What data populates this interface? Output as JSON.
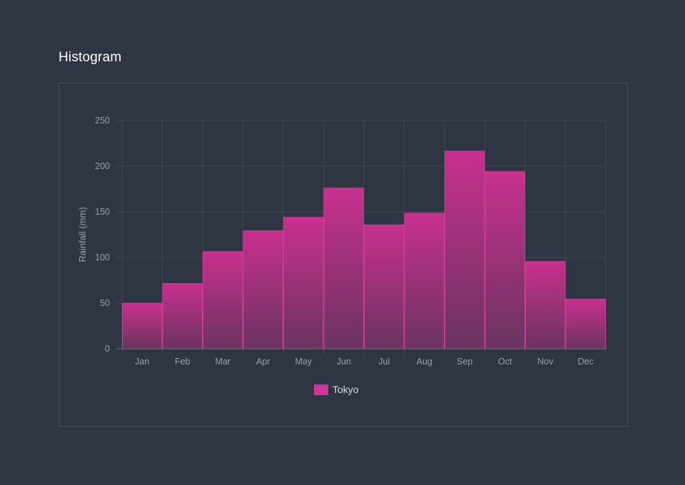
{
  "page": {
    "title": "Histogram"
  },
  "colors": {
    "background": "#2f3542",
    "grid": "#404756",
    "axis": "#6b7280",
    "bar_top": "#c8308f",
    "bar_bottom": "#6a345f",
    "bar_stroke": "#cf3a98",
    "legend_swatch": "#d0369a"
  },
  "chart_data": {
    "type": "bar",
    "title": "",
    "xlabel": "",
    "ylabel": "Rainfall (mm)",
    "ylim": [
      0,
      250
    ],
    "yticks": [
      0,
      50,
      100,
      150,
      200,
      250
    ],
    "grid": true,
    "legend": "bottom-center",
    "categories": [
      "Jan",
      "Feb",
      "Mar",
      "Apr",
      "May",
      "Jun",
      "Jul",
      "Aug",
      "Sep",
      "Oct",
      "Nov",
      "Dec"
    ],
    "series": [
      {
        "name": "Tokyo",
        "values": [
          49.9,
          71.5,
          106.4,
          129.2,
          144.0,
          176.0,
          135.6,
          148.5,
          216.4,
          194.1,
          95.6,
          54.4
        ]
      }
    ]
  }
}
